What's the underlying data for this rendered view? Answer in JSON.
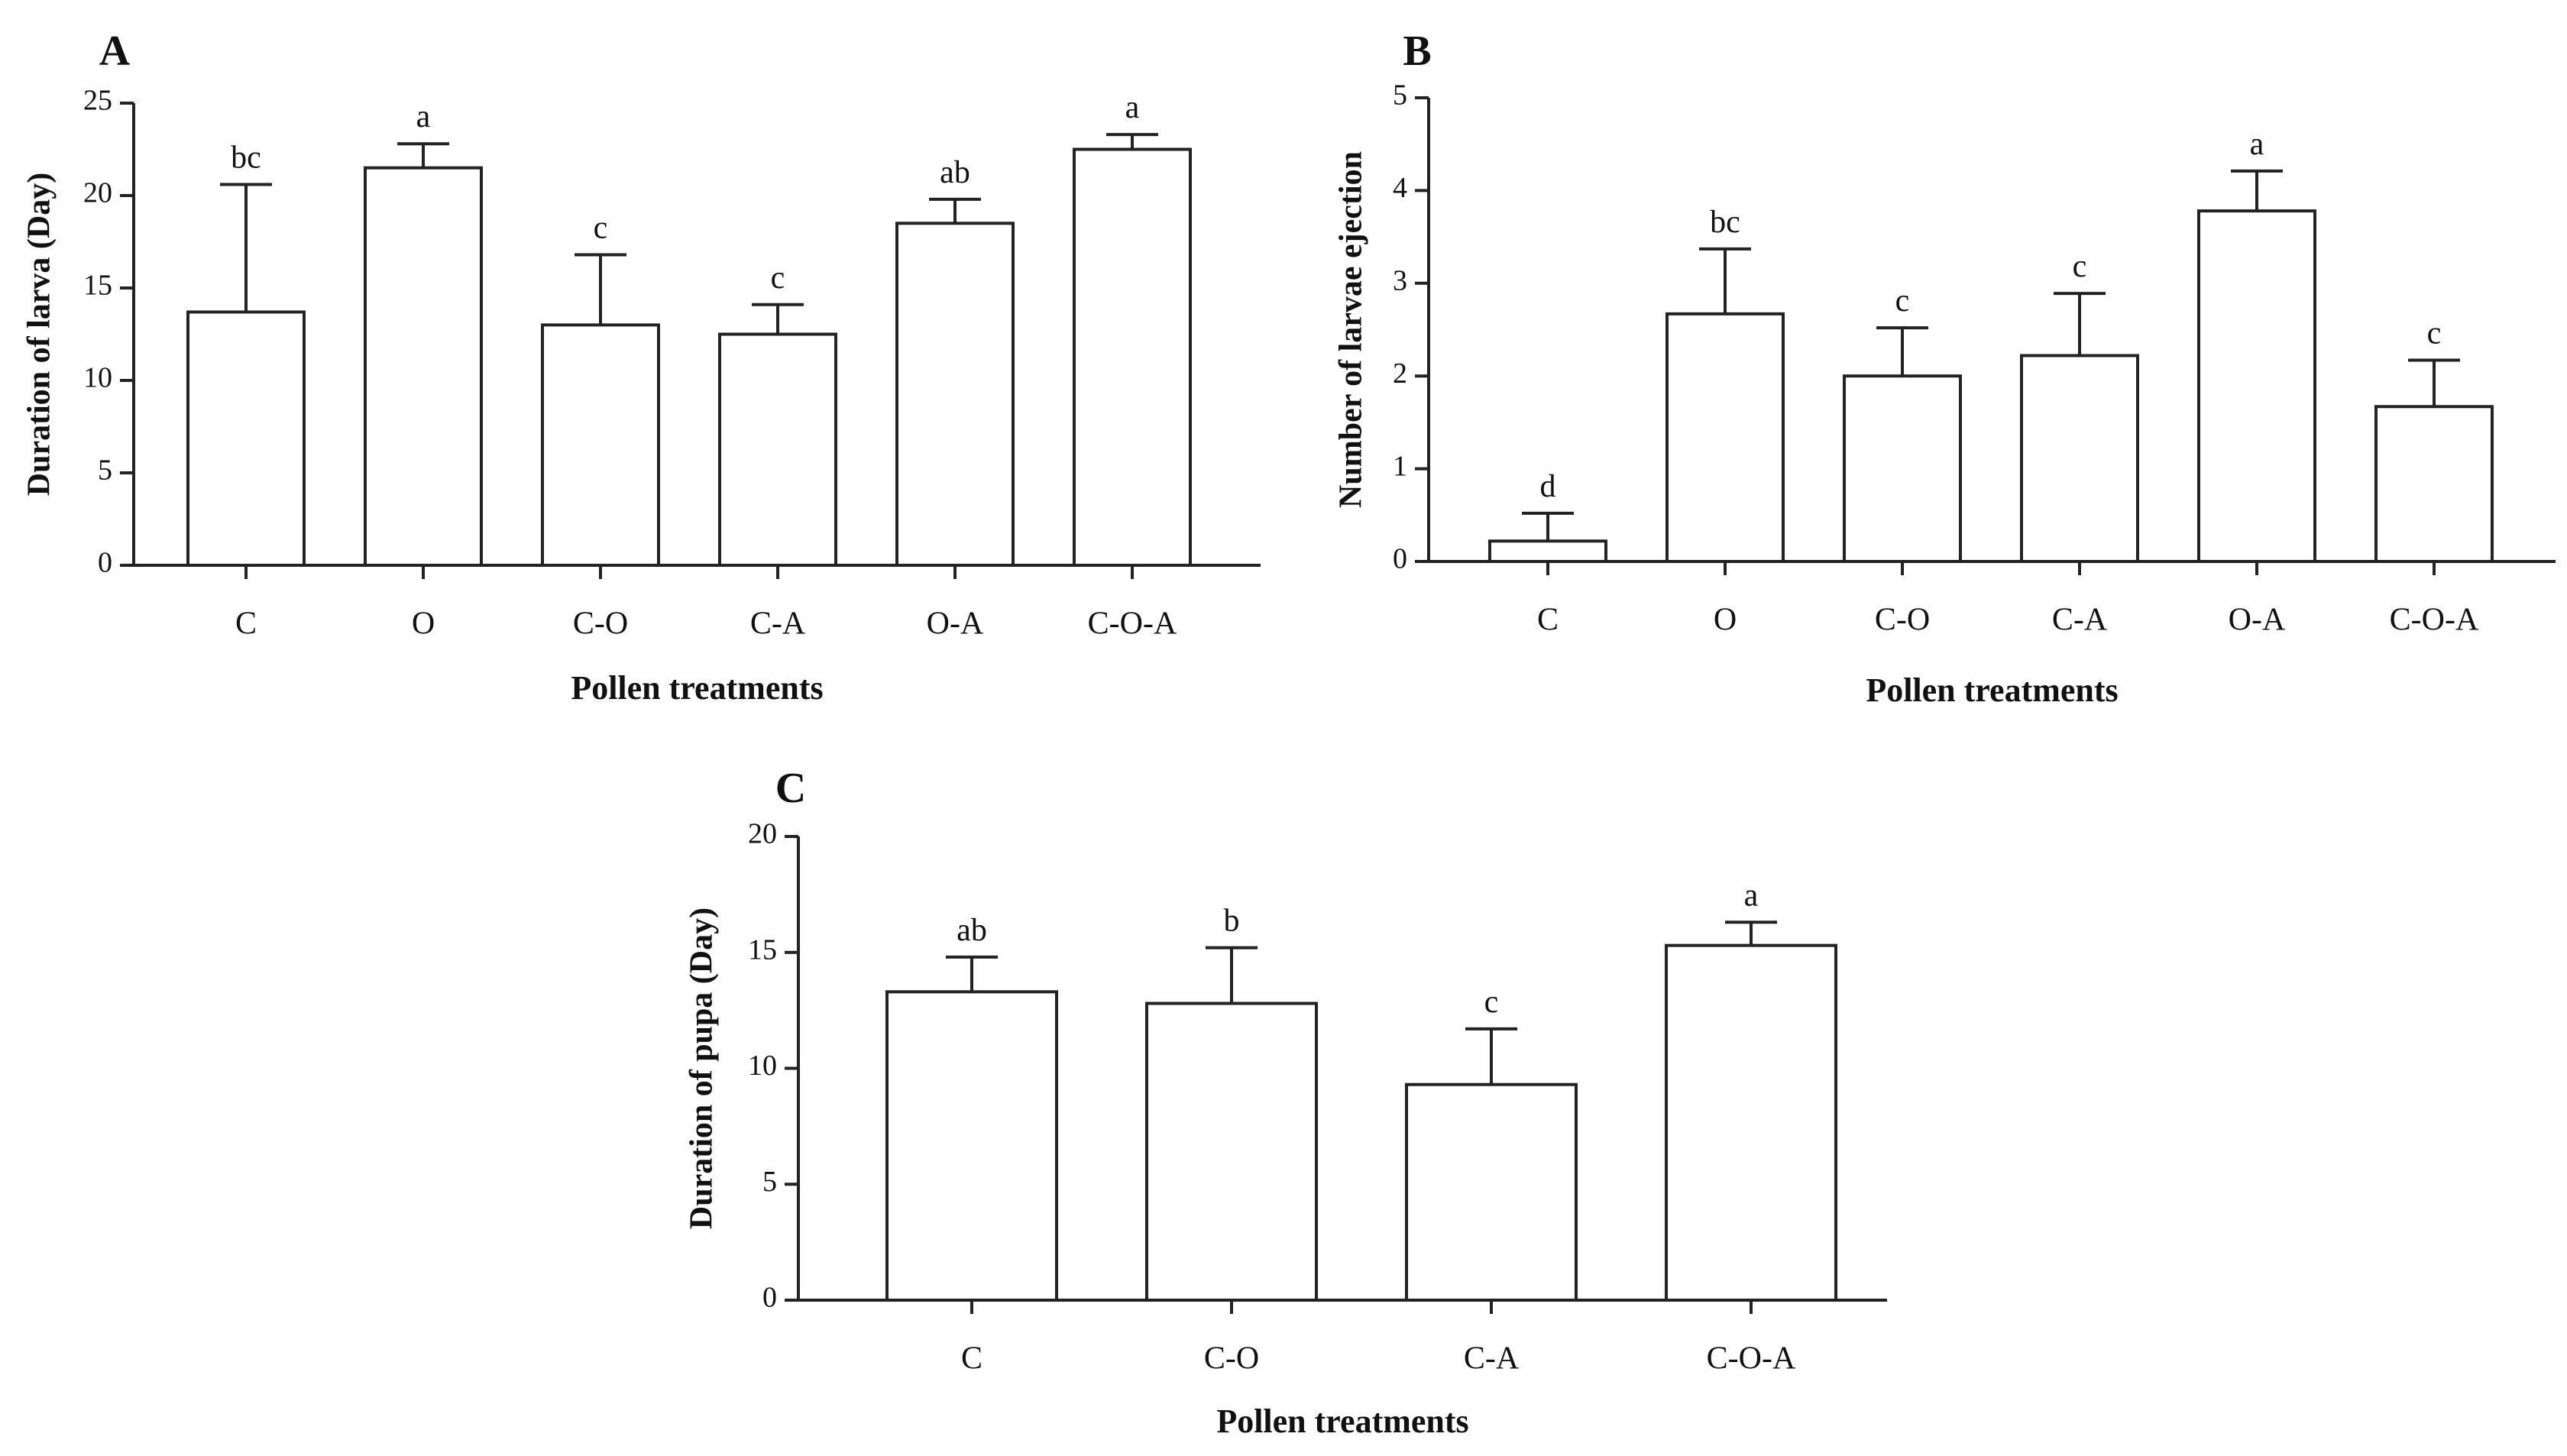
{
  "chart_data": [
    {
      "type": "bar",
      "panel": "A",
      "categories": [
        "C",
        "O",
        "C-O",
        "C-A",
        "O-A",
        "C-O-A"
      ],
      "values": [
        13.7,
        21.5,
        13.0,
        12.5,
        18.5,
        22.5
      ],
      "errors": [
        6.9,
        1.3,
        3.8,
        1.6,
        1.3,
        0.8
      ],
      "letters": [
        "bc",
        "a",
        "c",
        "c",
        "ab",
        "a"
      ],
      "xlabel": "Pollen treatments",
      "ylabel": "Duration of larva (Day)",
      "ylim": [
        0,
        25
      ],
      "yticks": [
        0,
        5,
        10,
        15,
        20,
        25
      ],
      "ytick_labels": [
        "0",
        "5",
        "10",
        "15",
        "20",
        "25"
      ]
    },
    {
      "type": "bar",
      "panel": "B",
      "categories": [
        "C",
        "O",
        "C-O",
        "C-A",
        "O-A",
        "C-O-A"
      ],
      "values": [
        0.22,
        2.67,
        2.0,
        2.22,
        3.78,
        1.67
      ],
      "errors": [
        0.3,
        0.7,
        0.52,
        0.67,
        0.43,
        0.5
      ],
      "letters": [
        "d",
        "bc",
        "c",
        "c",
        "a",
        "c"
      ],
      "xlabel": "Pollen treatments",
      "ylabel": "Number of larvae ejection",
      "ylim": [
        0,
        5
      ],
      "yticks": [
        0,
        1,
        2,
        3,
        4,
        5
      ],
      "ytick_labels": [
        "0",
        "1",
        "2",
        "3",
        "4",
        "5"
      ]
    },
    {
      "type": "bar",
      "panel": "C",
      "categories": [
        "C",
        "C-O",
        "C-A",
        "C-O-A"
      ],
      "values": [
        13.3,
        12.8,
        9.3,
        15.3
      ],
      "errors": [
        1.5,
        2.4,
        2.4,
        1.0
      ],
      "letters": [
        "ab",
        "b",
        "c",
        "a"
      ],
      "xlabel": "Pollen treatments",
      "ylabel": "Duration of pupa (Day)",
      "ylim": [
        0,
        20
      ],
      "yticks": [
        0,
        5,
        10,
        15,
        20
      ],
      "ytick_labels": [
        "0",
        "5",
        "10",
        "15",
        "20"
      ]
    }
  ]
}
